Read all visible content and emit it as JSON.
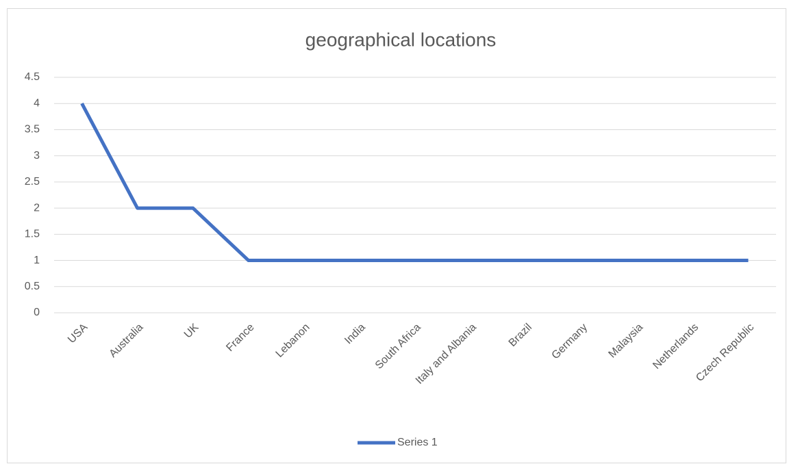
{
  "chart_data": {
    "type": "line",
    "title": "geographical locations",
    "categories": [
      "USA",
      "Australia",
      "UK",
      "France",
      "Lebanon",
      "India",
      "South Africa",
      "Italy and Albania",
      "Brazil",
      "Germany",
      "Malaysia",
      "Netherlands",
      "Czech Republic"
    ],
    "series": [
      {
        "name": "Series 1",
        "color": "#4472c4",
        "values": [
          4,
          2,
          2,
          1,
          1,
          1,
          1,
          1,
          1,
          1,
          1,
          1,
          1
        ]
      }
    ],
    "ylim": [
      0,
      4.5
    ],
    "yticks": [
      0,
      0.5,
      1,
      1.5,
      2,
      2.5,
      3,
      3.5,
      4,
      4.5
    ],
    "grid": true,
    "legend": "bottom"
  }
}
